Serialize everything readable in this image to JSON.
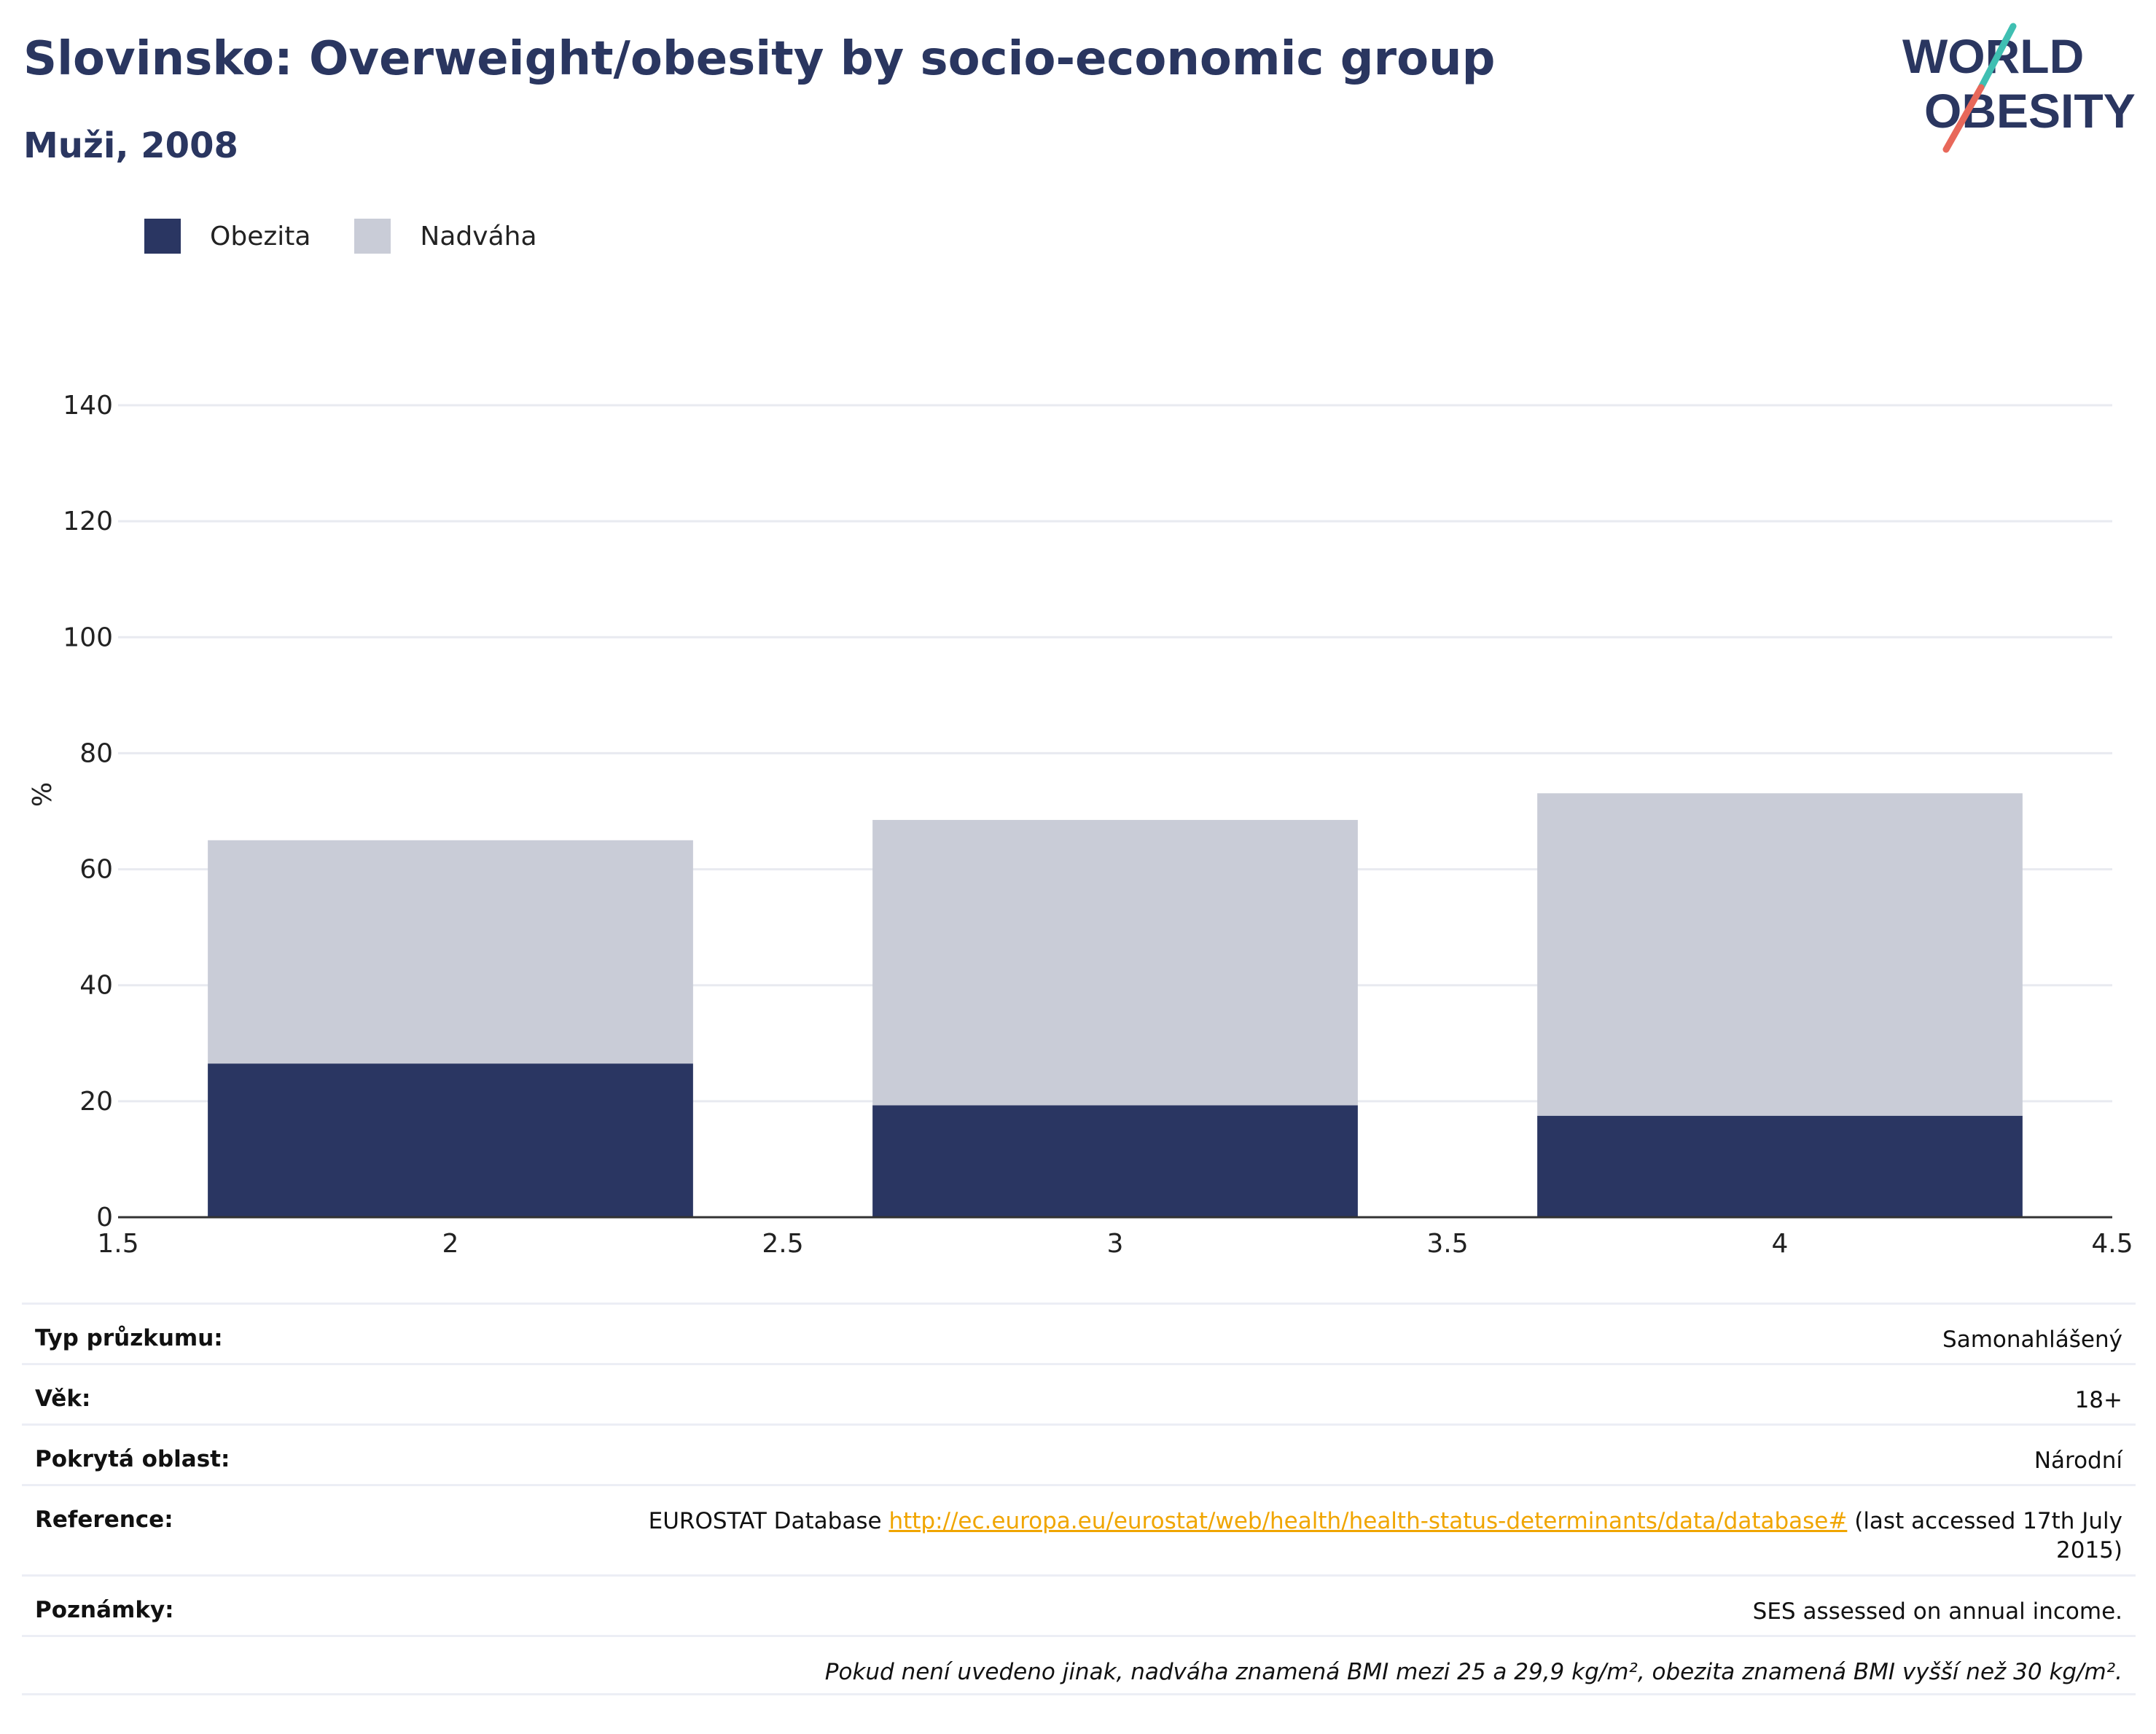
{
  "header": {
    "title": "Slovinsko: Overweight/obesity by socio-economic group",
    "subtitle": "Muži, 2008"
  },
  "logo": {
    "line1": "WORLD",
    "line2": "OBESITY",
    "accent_teal": "#3fbfb2",
    "accent_red": "#e8685a",
    "text_color": "#2a3660"
  },
  "legend": [
    {
      "label": "Obezita",
      "color": "#2a3662"
    },
    {
      "label": "Nadváha",
      "color": "#c9ccd7"
    }
  ],
  "chart_data": {
    "type": "bar",
    "stacked": true,
    "x": [
      2,
      3,
      4
    ],
    "series": [
      {
        "name": "Obezita",
        "color": "#2a3662",
        "values": [
          26.5,
          19.3,
          17.5
        ]
      },
      {
        "name": "Nadváha",
        "color": "#c9ccd7",
        "values": [
          38.5,
          49.2,
          55.6
        ]
      }
    ],
    "ylabel": "%",
    "xlabel": "",
    "xlim": [
      1.5,
      4.5
    ],
    "ylim": [
      0,
      140
    ],
    "xticks": [
      "1.5",
      "2",
      "2.5",
      "3",
      "3.5",
      "4",
      "4.5"
    ],
    "yticks": [
      "0",
      "20",
      "40",
      "60",
      "80",
      "100",
      "120",
      "140"
    ],
    "grid": true,
    "legend_position": "top-left"
  },
  "meta": {
    "survey_type_label": "Typ průzkumu:",
    "survey_type_value": "Samonahlášený",
    "age_label": "Věk:",
    "age_value": "18+",
    "area_label": "Pokrytá oblast:",
    "area_value": "Národní",
    "reference_label": "Reference:",
    "reference_prefix": "EUROSTAT Database",
    "reference_link": "http://ec.europa.eu/eurostat/web/health/health-status-determinants/data/database#",
    "reference_suffix": "(last accessed 17th July 2015)",
    "notes_label": "Poznámky:",
    "notes_value": "SES assessed on annual income.",
    "definition_note": "Pokud není uvedeno jinak, nadváha znamená BMI mezi 25 a 29,9 kg/m², obezita znamená BMI vyšší než 30 kg/m²."
  }
}
